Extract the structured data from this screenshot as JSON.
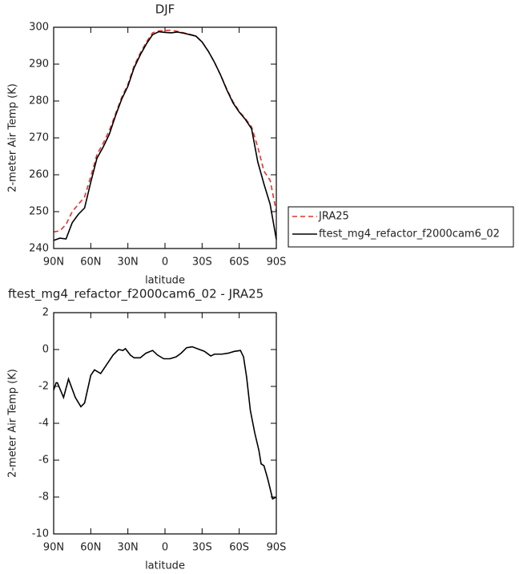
{
  "chart_data": [
    {
      "type": "line",
      "title": "DJF",
      "xlabel": "latitude",
      "ylabel": "2-meter Air Temp (K)",
      "x": [
        90,
        85,
        80,
        75,
        70,
        65,
        60,
        55,
        50,
        45,
        40,
        35,
        30,
        25,
        20,
        15,
        10,
        5,
        0,
        -5,
        -10,
        -15,
        -20,
        -25,
        -30,
        -35,
        -40,
        -45,
        -50,
        -55,
        -60,
        -65,
        -70,
        -75,
        -80,
        -85,
        -90
      ],
      "xlim": [
        90,
        -90
      ],
      "xticks": [
        {
          "value": 90,
          "label": "90N"
        },
        {
          "value": 60,
          "label": "60N"
        },
        {
          "value": 30,
          "label": "30N"
        },
        0,
        {
          "value": -30,
          "label": "30S"
        },
        {
          "value": -60,
          "label": "60S"
        },
        {
          "value": -90,
          "label": "90S"
        }
      ],
      "ylim": [
        240,
        300
      ],
      "yticks": [
        240,
        250,
        260,
        270,
        280,
        290,
        300
      ],
      "legend": "right",
      "series": [
        {
          "name": "JRA25",
          "color": "#e8302a",
          "linestyle": "dashed",
          "values": [
            244.5,
            244.8,
            246.5,
            250,
            252,
            254,
            259.5,
            265.5,
            268.5,
            272,
            276.5,
            281,
            284.5,
            289.5,
            293,
            296,
            298.5,
            299,
            299.1,
            299.2,
            298.9,
            298.5,
            298.1,
            297.6,
            296,
            293.5,
            290.5,
            287,
            283.2,
            279.8,
            277.2,
            275.2,
            273,
            267.5,
            261,
            258.5,
            250
          ]
        },
        {
          "name": "ftest_mg4_refactor_f2000cam6_02",
          "color": "#000000",
          "linestyle": "solid",
          "values": [
            242.2,
            242.8,
            242.6,
            247,
            249.3,
            251,
            258,
            264.5,
            267.5,
            271,
            276,
            280.5,
            284,
            289,
            292.5,
            295.5,
            298,
            298.8,
            298.6,
            298.5,
            298.7,
            298.4,
            298,
            297.6,
            296,
            293.5,
            290.5,
            287,
            283,
            279.5,
            277,
            275,
            272.5,
            263.5,
            257.5,
            252,
            242.5
          ]
        }
      ]
    },
    {
      "type": "line",
      "title": "ftest_mg4_refactor_f2000cam6_02 - JRA25",
      "xlabel": "latitude",
      "ylabel": "2-meter Air Temp (K)",
      "x": [
        90,
        88,
        87,
        82,
        78,
        72.5,
        68,
        65,
        60,
        57,
        52,
        47,
        42,
        37.5,
        34,
        32,
        28,
        25,
        20,
        15.5,
        10,
        6,
        1,
        -4,
        -9,
        -13,
        -17.5,
        -22,
        -26,
        -32,
        -37,
        -40,
        -46,
        -51,
        -56,
        -61,
        -63.5,
        -66,
        -69,
        -72.5,
        -76,
        -77.7,
        -80,
        -83,
        -87,
        -90
      ],
      "xlim": [
        90,
        -90
      ],
      "xticks": [
        {
          "value": 90,
          "label": "90N"
        },
        {
          "value": 60,
          "label": "60N"
        },
        {
          "value": 30,
          "label": "30N"
        },
        0,
        {
          "value": -30,
          "label": "30S"
        },
        {
          "value": -60,
          "label": "60S"
        },
        {
          "value": -90,
          "label": "90S"
        }
      ],
      "ylim": [
        -10,
        2
      ],
      "yticks": [
        -10,
        -8,
        -6,
        -4,
        -2,
        0,
        2
      ],
      "series": [
        {
          "color": "#000000",
          "linestyle": "solid",
          "values": [
            -2.2,
            -1.8,
            -1.8,
            -2.6,
            -1.6,
            -2.6,
            -3.1,
            -2.9,
            -1.4,
            -1.1,
            -1.3,
            -0.8,
            -0.3,
            0,
            -0.05,
            0.05,
            -0.3,
            -0.45,
            -0.45,
            -0.2,
            -0.05,
            -0.3,
            -0.5,
            -0.5,
            -0.4,
            -0.2,
            0.1,
            0.15,
            0.05,
            -0.1,
            -0.35,
            -0.25,
            -0.25,
            -0.2,
            -0.1,
            -0.05,
            -0.4,
            -1.5,
            -3.3,
            -4.5,
            -5.5,
            -6.2,
            -6.3,
            -7,
            -8.1,
            -8
          ]
        }
      ]
    }
  ]
}
